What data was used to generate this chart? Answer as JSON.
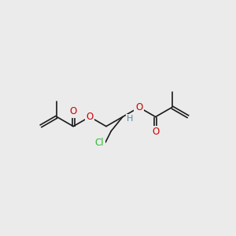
{
  "bg_color": "#ebebeb",
  "bond_color": "#1a1a1a",
  "o_color": "#cc0000",
  "cl_color": "#33bb33",
  "h_color": "#5588aa",
  "font_size": 8.5,
  "line_width": 1.2,
  "dbo": 0.055,
  "xlim": [
    0,
    10
  ],
  "ylim": [
    2,
    8
  ]
}
